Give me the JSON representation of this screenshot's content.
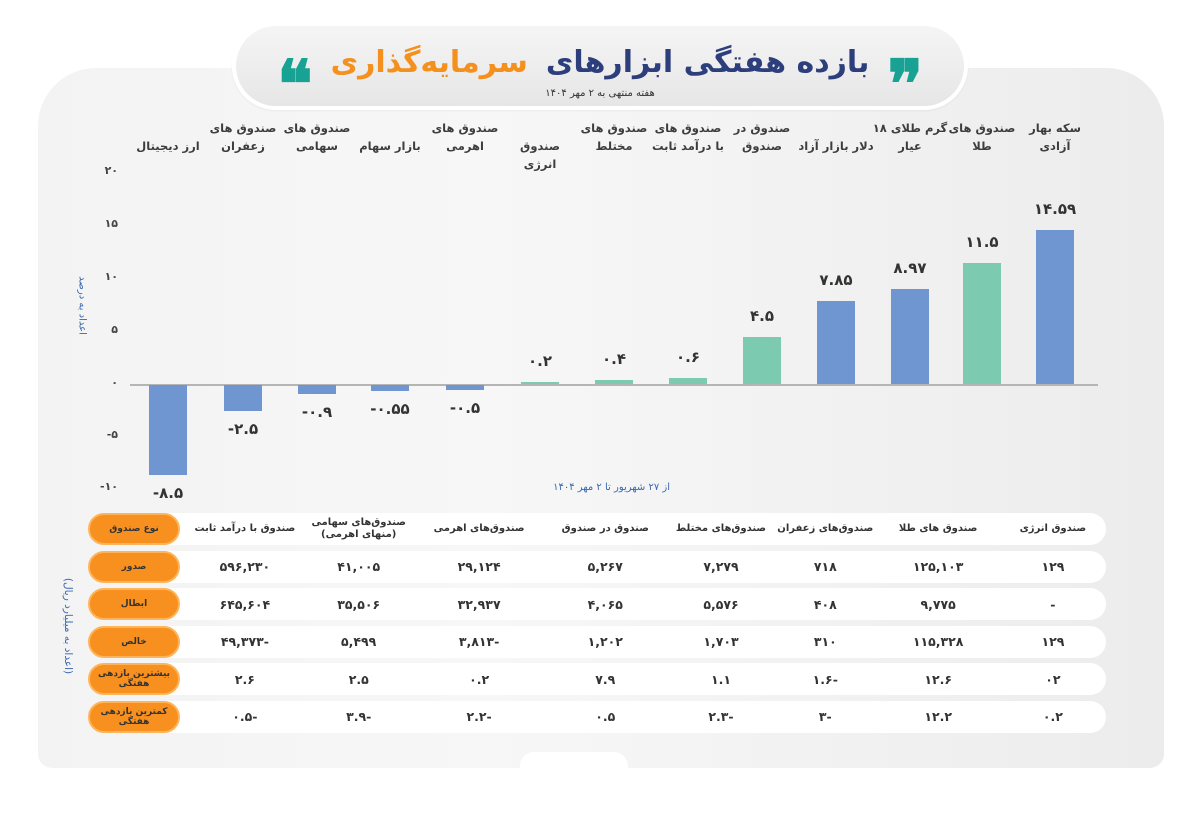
{
  "header": {
    "title_part1": "بازده هفتگی ابزارهای",
    "title_part2": "سرمایه‌گذاری",
    "subtitle": "هفته منتهی به ۲ مهر ۱۴۰۴",
    "quote_open": "❞",
    "quote_close": "❝"
  },
  "chart": {
    "y_axis_title": "اعداد به درصد",
    "x_caption": "از ۲۷ شهریور تا ۲ مهر ۱۴۰۴",
    "y_ticks": [
      "۲۰",
      "۱۵",
      "۱۰",
      "۵",
      "۰",
      "-۵",
      "-۱۰"
    ],
    "categories": [
      {
        "line1": "سکه بهار",
        "line2": "آزادی",
        "value_label": "۱۴.۵۹"
      },
      {
        "line1": "صندوق های",
        "line2": "طلا",
        "value_label": "۱۱.۵"
      },
      {
        "line1": "گرم طلای ۱۸",
        "line2": "عیار",
        "value_label": "۸.۹۷"
      },
      {
        "line1": "",
        "line2": "دلار بازار آزاد",
        "value_label": "۷.۸۵"
      },
      {
        "line1": "صندوق در",
        "line2": "صندوق",
        "value_label": "۴.۵"
      },
      {
        "line1": "صندوق های",
        "line2": "با درآمد ثابت",
        "value_label": "۰.۶"
      },
      {
        "line1": "صندوق های",
        "line2": "مختلط",
        "value_label": "۰.۴"
      },
      {
        "line1": "",
        "line2": "صندوق انرژی",
        "value_label": "۰.۲"
      },
      {
        "line1": "صندوق های",
        "line2": "اهرمی",
        "value_label": "-۰.۵"
      },
      {
        "line1": "",
        "line2": "بازار سهام",
        "value_label": "-۰.۵۵"
      },
      {
        "line1": "صندوق های",
        "line2": "سهامی",
        "value_label": "-۰.۹"
      },
      {
        "line1": "صندوق های",
        "line2": "زعفران",
        "value_label": "-۲.۵"
      },
      {
        "line1": "",
        "line2": "ارز دیجیتال",
        "value_label": "-۸.۵"
      }
    ]
  },
  "chart_data": {
    "type": "bar",
    "title": "بازده هفتگی ابزارهای سرمایه‌گذاری",
    "subtitle": "هفته منتهی به ۲ مهر ۱۴۰۴",
    "xlabel": "از ۲۷ شهریور تا ۲ مهر ۱۴۰۴",
    "ylabel": "اعداد به درصد",
    "ylim": [
      -10,
      20
    ],
    "yticks": [
      -10,
      -5,
      0,
      5,
      10,
      15,
      20
    ],
    "grid": false,
    "categories": [
      "سکه بهار آزادی",
      "صندوق های طلا",
      "گرم طلای ۱۸ عیار",
      "دلار بازار آزاد",
      "صندوق در صندوق",
      "صندوق های با درآمد ثابت",
      "صندوق های مختلط",
      "صندوق انرژی",
      "صندوق های اهرمی",
      "بازار سهام",
      "صندوق های سهامی",
      "صندوق های زعفران",
      "ارز دیجیتال"
    ],
    "values": [
      14.59,
      11.5,
      8.97,
      7.85,
      4.5,
      0.6,
      0.4,
      0.2,
      -0.5,
      -0.55,
      -0.9,
      -2.5,
      -8.5
    ],
    "colors": [
      "#7096d1",
      "#7ccaaf",
      "#7096d1",
      "#7096d1",
      "#7ccaaf",
      "#7ccaaf",
      "#7ccaaf",
      "#7ccaaf",
      "#7096d1",
      "#7096d1",
      "#7096d1",
      "#7096d1",
      "#7096d1"
    ]
  },
  "table": {
    "side_label": "(اعداد به میلیارد ریال)",
    "row_labels": [
      "نوع صندوق",
      "صدور",
      "ابطال",
      "خالص",
      "بیشترین بازدهی هفتگی",
      "کمترین بازدهی هفتگی"
    ],
    "columns": [
      "صندوق انرژی",
      "صندوق های طلا",
      "صندوق‌های زعفران",
      "صندوق‌های مختلط",
      "صندوق در صندوق",
      "صندوق‌های اهرمی",
      "صندوق‌های سهامی (منهای اهرمی)",
      "صندوق با درآمد ثابت"
    ],
    "rows": [
      [
        "۱۲۹",
        "۱۲۵,۱۰۳",
        "۷۱۸",
        "۷,۲۷۹",
        "۵,۲۶۷",
        "۲۹,۱۲۴",
        "۴۱,۰۰۵",
        "۵۹۶,۲۳۰"
      ],
      [
        "-",
        "۹,۷۷۵",
        "۴۰۸",
        "۵,۵۷۶",
        "۴,۰۶۵",
        "۳۲,۹۳۷",
        "۳۵,۵۰۶",
        "۶۴۵,۶۰۴"
      ],
      [
        "۱۲۹",
        "۱۱۵,۳۲۸",
        "۳۱۰",
        "۱,۷۰۳",
        "۱,۲۰۲",
        "-۳,۸۱۳",
        "۵,۴۹۹",
        "-۴۹,۳۷۳"
      ],
      [
        "۰۲",
        "۱۲.۶",
        "-۱.۶",
        "۱.۱",
        "۷.۹",
        "۰.۲",
        "۲.۵",
        "۲.۶"
      ],
      [
        "۰.۲",
        "۱۲.۲",
        "-۳",
        "-۲.۳",
        "۰.۵",
        "-۲.۲",
        "-۳.۹",
        "-۰.۵"
      ]
    ]
  },
  "colors": {
    "bar_blue": "#7096d1",
    "bar_green": "#7ccaaf",
    "accent_orange": "#f7901e",
    "title_navy": "#2c3e7b",
    "quote_teal": "#17a294"
  }
}
